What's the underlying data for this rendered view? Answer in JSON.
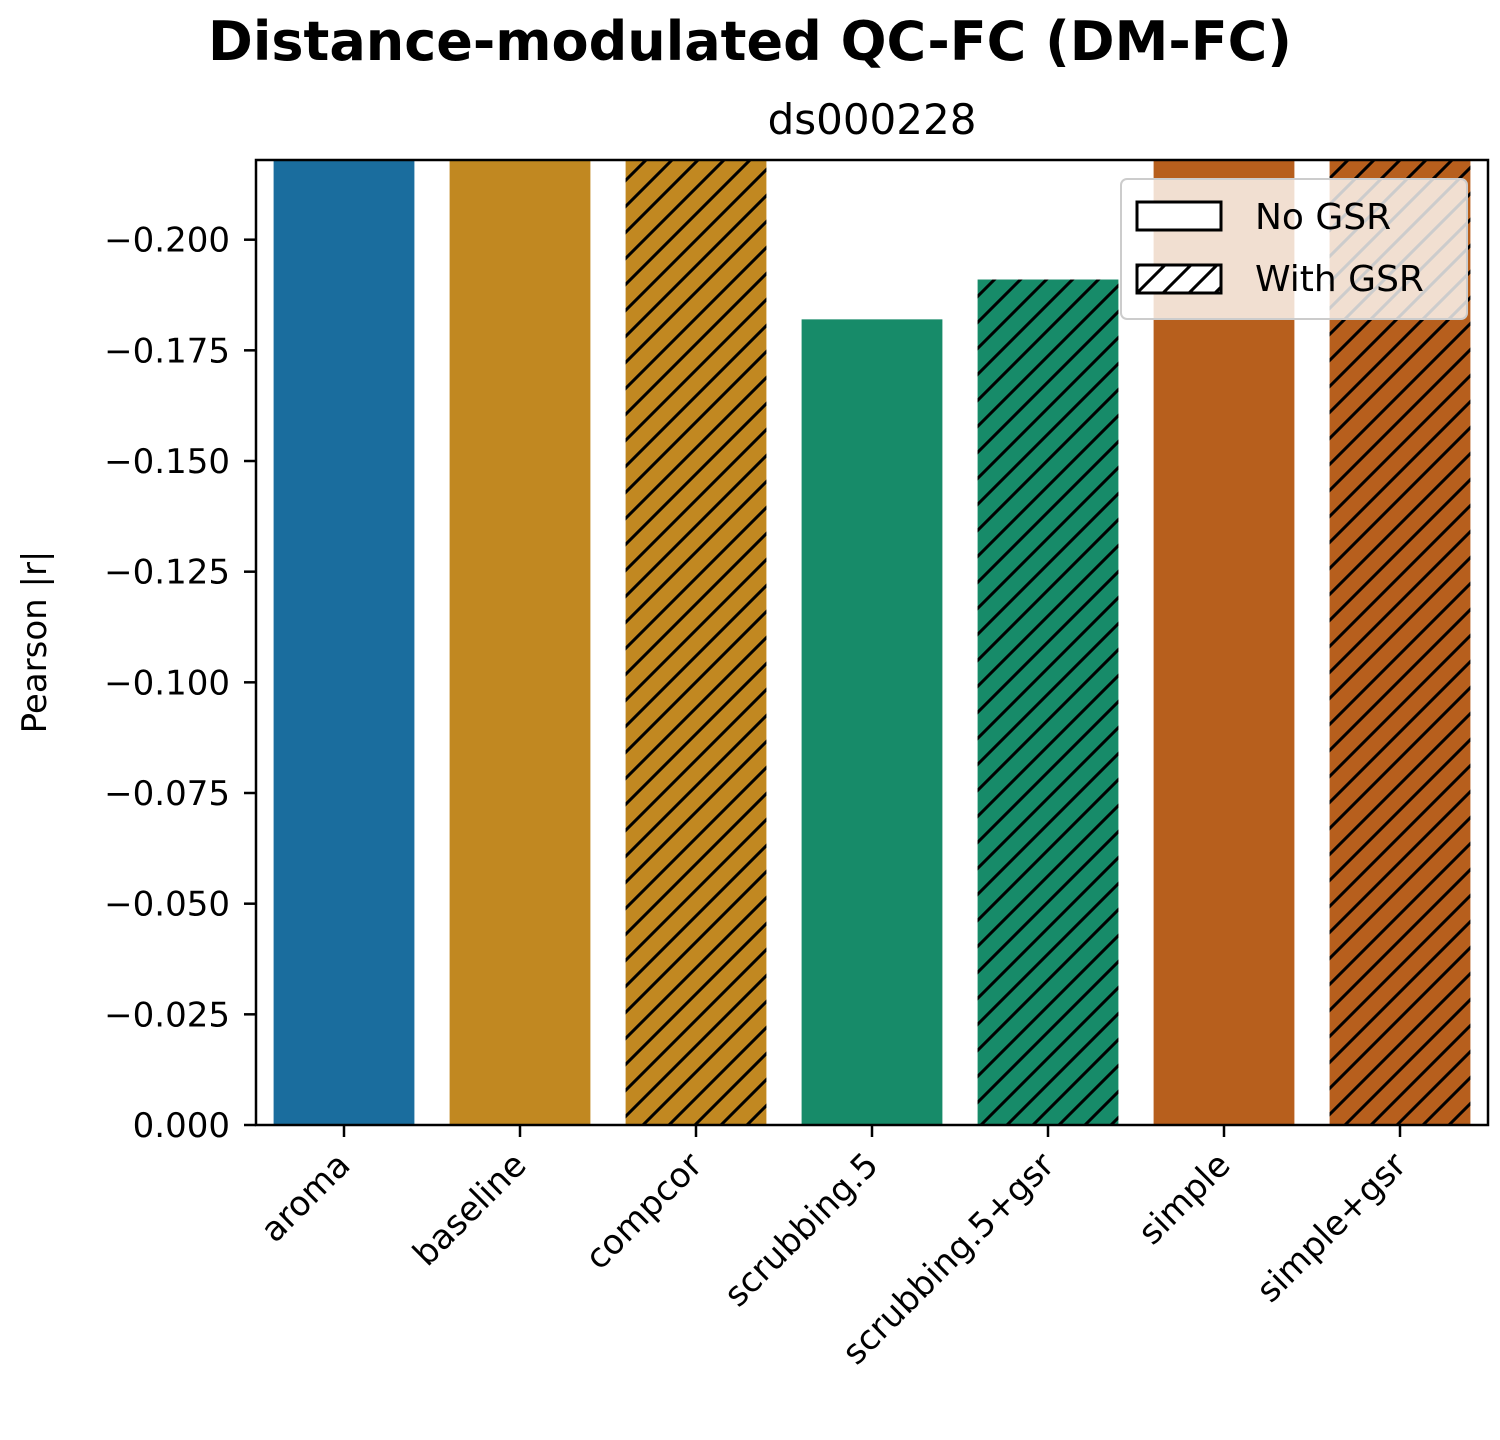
{
  "chart_data": {
    "type": "bar",
    "title": "Distance-modulated QC-FC (DM-FC)",
    "subtitle": "ds000228",
    "xlabel": "",
    "ylabel": "Pearson |r|",
    "categories": [
      "aroma",
      "baseline",
      "compcor",
      "scrubbing.5",
      "scrubbing.5+gsr",
      "simple",
      "simple+gsr"
    ],
    "values": [
      -0.218,
      -0.218,
      -0.218,
      -0.182,
      -0.191,
      -0.218,
      -0.218
    ],
    "hatched": [
      false,
      false,
      true,
      false,
      true,
      false,
      true
    ],
    "colors": [
      "#1a6d9e",
      "#c18821",
      "#c18821",
      "#178b69",
      "#178b69",
      "#b75f1d",
      "#b75f1d"
    ],
    "ylim": [
      0,
      -0.218
    ],
    "yticks": [
      0,
      -0.025,
      -0.05,
      -0.075,
      -0.1,
      -0.125,
      -0.15,
      -0.175,
      -0.2
    ],
    "ytick_labels": [
      "0.000",
      "−0.025",
      "−0.050",
      "−0.075",
      "−0.100",
      "−0.125",
      "−0.150",
      "−0.175",
      "−0.200"
    ],
    "y_inverted": true,
    "grid": false,
    "legend": {
      "position": "top-right",
      "entries": [
        {
          "label": "No GSR",
          "hatched": false
        },
        {
          "label": "With GSR",
          "hatched": true
        }
      ]
    }
  }
}
